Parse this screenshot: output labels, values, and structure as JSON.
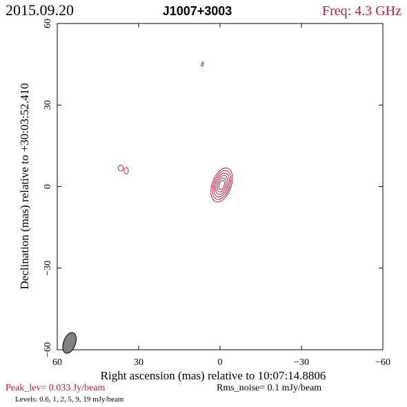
{
  "header": {
    "date": "2015.09.20",
    "source": "J1007+3003",
    "freq": "Freq: 4.3 GHz"
  },
  "footer": {
    "peak": "Peak_lev=  0.033 Jy/beam",
    "rms": "Rms_noise=  0.1 mJy/beam",
    "levels": "Levels: 0.6,   1,   2,   5,   9,  19 mJy/beam"
  },
  "colors": {
    "contour": "#b0204a",
    "text_accent": "#b0204a",
    "axes": "#000000",
    "beam_fill": "#808080"
  },
  "chart_data": {
    "type": "contour",
    "xlabel": "Right ascension (mas) relative to 10:07:14.8806",
    "ylabel": "Declination (mas) relative to +30:03:52.410",
    "xlim": [
      60,
      -60
    ],
    "ylim": [
      -60,
      60
    ],
    "xticks": [
      60,
      30,
      0,
      -30,
      -60
    ],
    "yticks": [
      -60,
      -30,
      0,
      30,
      60
    ],
    "xtick_labels": [
      "60",
      "30",
      "0",
      "−30",
      "−60"
    ],
    "ytick_labels": [
      "−60",
      "−30",
      "0",
      "30",
      "60"
    ],
    "grid": false,
    "levels_mJy": [
      0.6,
      1,
      2,
      5,
      9,
      19
    ],
    "components": [
      {
        "x": -0.6,
        "y": 0.6,
        "levels": 6,
        "rx": 3.5,
        "ry": 6.5,
        "angle_deg": 20
      },
      {
        "x": 36.6,
        "y": 6.8,
        "levels": 1,
        "rx": 0.9,
        "ry": 1.1,
        "angle_deg": 0
      },
      {
        "x": 34.6,
        "y": 5.8,
        "levels": 1,
        "rx": 0.8,
        "ry": 1.2,
        "angle_deg": 0
      },
      {
        "x": 6.5,
        "y": 45,
        "levels": 1,
        "rx": 0.3,
        "ry": 0.8,
        "angle_deg": 20
      }
    ],
    "beam": {
      "x": 55.5,
      "y": -57.5,
      "major": 4.0,
      "minor": 2.2,
      "angle_deg": 20
    }
  }
}
